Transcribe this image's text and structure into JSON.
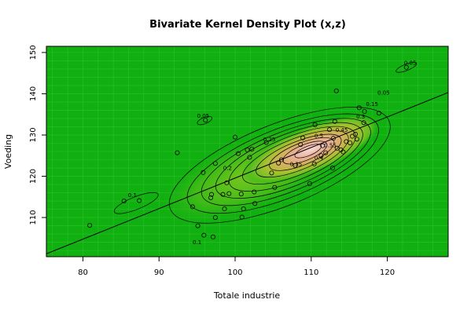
{
  "chart_data": {
    "type": "density-contour-scatter",
    "title": "Bivariate Kernel Density Plot (x,z)",
    "xlabel": "Totale industrie",
    "ylabel": "Voeding",
    "xlim": [
      75.2,
      128.0
    ],
    "ylim": [
      100.5,
      151.5
    ],
    "x_ticks": [
      80,
      90,
      100,
      110,
      120
    ],
    "y_ticks": [
      110,
      120,
      130,
      140,
      150
    ],
    "grid": true,
    "colors": {
      "background": "#10b010",
      "high_density": "#f4cfc8",
      "contour": "#000000",
      "regression": "#000000",
      "frame": "#000000"
    },
    "regression_line": {
      "x": [
        75.2,
        128.0
      ],
      "y": [
        101.2,
        140.3
      ]
    },
    "contour_labels": [
      {
        "text": "0.05",
        "x": 95.8,
        "y": 134.2
      },
      {
        "text": "0.05",
        "x": 123.0,
        "y": 147.0
      },
      {
        "text": "0.05",
        "x": 119.5,
        "y": 139.8
      },
      {
        "text": "0.1",
        "x": 86.5,
        "y": 115.0
      },
      {
        "text": "0.1",
        "x": 95.0,
        "y": 103.5
      },
      {
        "text": "0.15",
        "x": 118.0,
        "y": 137.0
      },
      {
        "text": "0.2",
        "x": 99.0,
        "y": 121.5
      },
      {
        "text": "0.25",
        "x": 104.5,
        "y": 128.5
      },
      {
        "text": "0.3",
        "x": 116.5,
        "y": 134.0
      },
      {
        "text": "0.35",
        "x": 108.0,
        "y": 122.5
      },
      {
        "text": "0.4",
        "x": 111.0,
        "y": 124.0
      },
      {
        "text": "0.45",
        "x": 114.0,
        "y": 130.8
      },
      {
        "text": "0.5",
        "x": 111.0,
        "y": 129.3
      },
      {
        "text": "0.55",
        "x": 112.5,
        "y": 127.0
      }
    ],
    "points": [
      [
        80.9,
        108.1
      ],
      [
        85.4,
        114.0
      ],
      [
        87.4,
        114.1
      ],
      [
        92.4,
        125.7
      ],
      [
        94.4,
        112.6
      ],
      [
        95.1,
        108.0
      ],
      [
        95.9,
        105.7
      ],
      [
        95.8,
        120.9
      ],
      [
        96.1,
        133.6
      ],
      [
        96.8,
        114.8
      ],
      [
        96.9,
        115.6
      ],
      [
        97.1,
        105.3
      ],
      [
        97.4,
        110.0
      ],
      [
        97.4,
        123.1
      ],
      [
        98.4,
        115.6
      ],
      [
        98.6,
        112.1
      ],
      [
        98.9,
        118.4
      ],
      [
        99.2,
        115.8
      ],
      [
        100.0,
        129.5
      ],
      [
        100.4,
        125.5
      ],
      [
        100.8,
        115.7
      ],
      [
        100.9,
        110.1
      ],
      [
        101.1,
        112.1
      ],
      [
        101.6,
        126.4
      ],
      [
        101.9,
        124.6
      ],
      [
        102.2,
        126.6
      ],
      [
        102.5,
        116.2
      ],
      [
        102.6,
        113.4
      ],
      [
        104.1,
        128.2
      ],
      [
        104.8,
        120.8
      ],
      [
        105.2,
        117.3
      ],
      [
        105.7,
        123.2
      ],
      [
        106.1,
        124.0
      ],
      [
        107.9,
        122.6
      ],
      [
        108.6,
        127.7
      ],
      [
        108.9,
        129.3
      ],
      [
        109.8,
        118.2
      ],
      [
        110.4,
        123.0
      ],
      [
        110.5,
        132.5
      ],
      [
        111.3,
        125.0
      ],
      [
        111.5,
        127.4
      ],
      [
        111.9,
        125.7
      ],
      [
        112.4,
        131.3
      ],
      [
        112.8,
        122.0
      ],
      [
        112.9,
        129.2
      ],
      [
        113.1,
        133.3
      ],
      [
        113.3,
        140.7
      ],
      [
        113.4,
        126.8
      ],
      [
        113.9,
        126.4
      ],
      [
        114.2,
        125.9
      ],
      [
        114.6,
        128.4
      ],
      [
        115.1,
        128.1
      ],
      [
        115.4,
        129.7
      ],
      [
        115.8,
        130.2
      ],
      [
        116.0,
        129.0
      ],
      [
        116.3,
        136.6
      ],
      [
        116.9,
        133.0
      ],
      [
        117.0,
        135.7
      ],
      [
        118.9,
        135.3
      ],
      [
        122.5,
        146.4
      ]
    ]
  }
}
